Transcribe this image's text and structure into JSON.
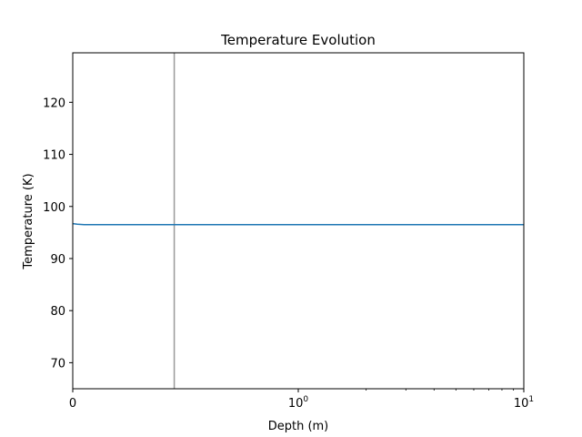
{
  "chart_data": {
    "type": "line",
    "title": "Temperature Evolution",
    "xlabel": "Depth (m)",
    "ylabel": "Temperature (K)",
    "xscale": "symlog",
    "xlim": [
      0,
      10
    ],
    "ylim": [
      65,
      129.5
    ],
    "x_ticks": [
      {
        "value": 0,
        "base": "0",
        "exp": ""
      },
      {
        "value": 1,
        "base": "10",
        "exp": "0"
      },
      {
        "value": 10,
        "base": "10",
        "exp": "1"
      }
    ],
    "y_ticks": [
      70,
      80,
      90,
      100,
      110,
      120
    ],
    "grid": false,
    "legend": "none",
    "series": [
      {
        "color": "#1f77b4",
        "x": [
          0,
          0.02,
          0.05,
          0.1,
          0.2,
          0.5,
          1,
          2,
          5,
          10
        ],
        "y": [
          96.7,
          96.6,
          96.5,
          96.5,
          96.5,
          96.5,
          96.5,
          96.5,
          96.5,
          96.5
        ]
      }
    ],
    "vline": {
      "x": 0.45,
      "color": "#999999"
    }
  }
}
